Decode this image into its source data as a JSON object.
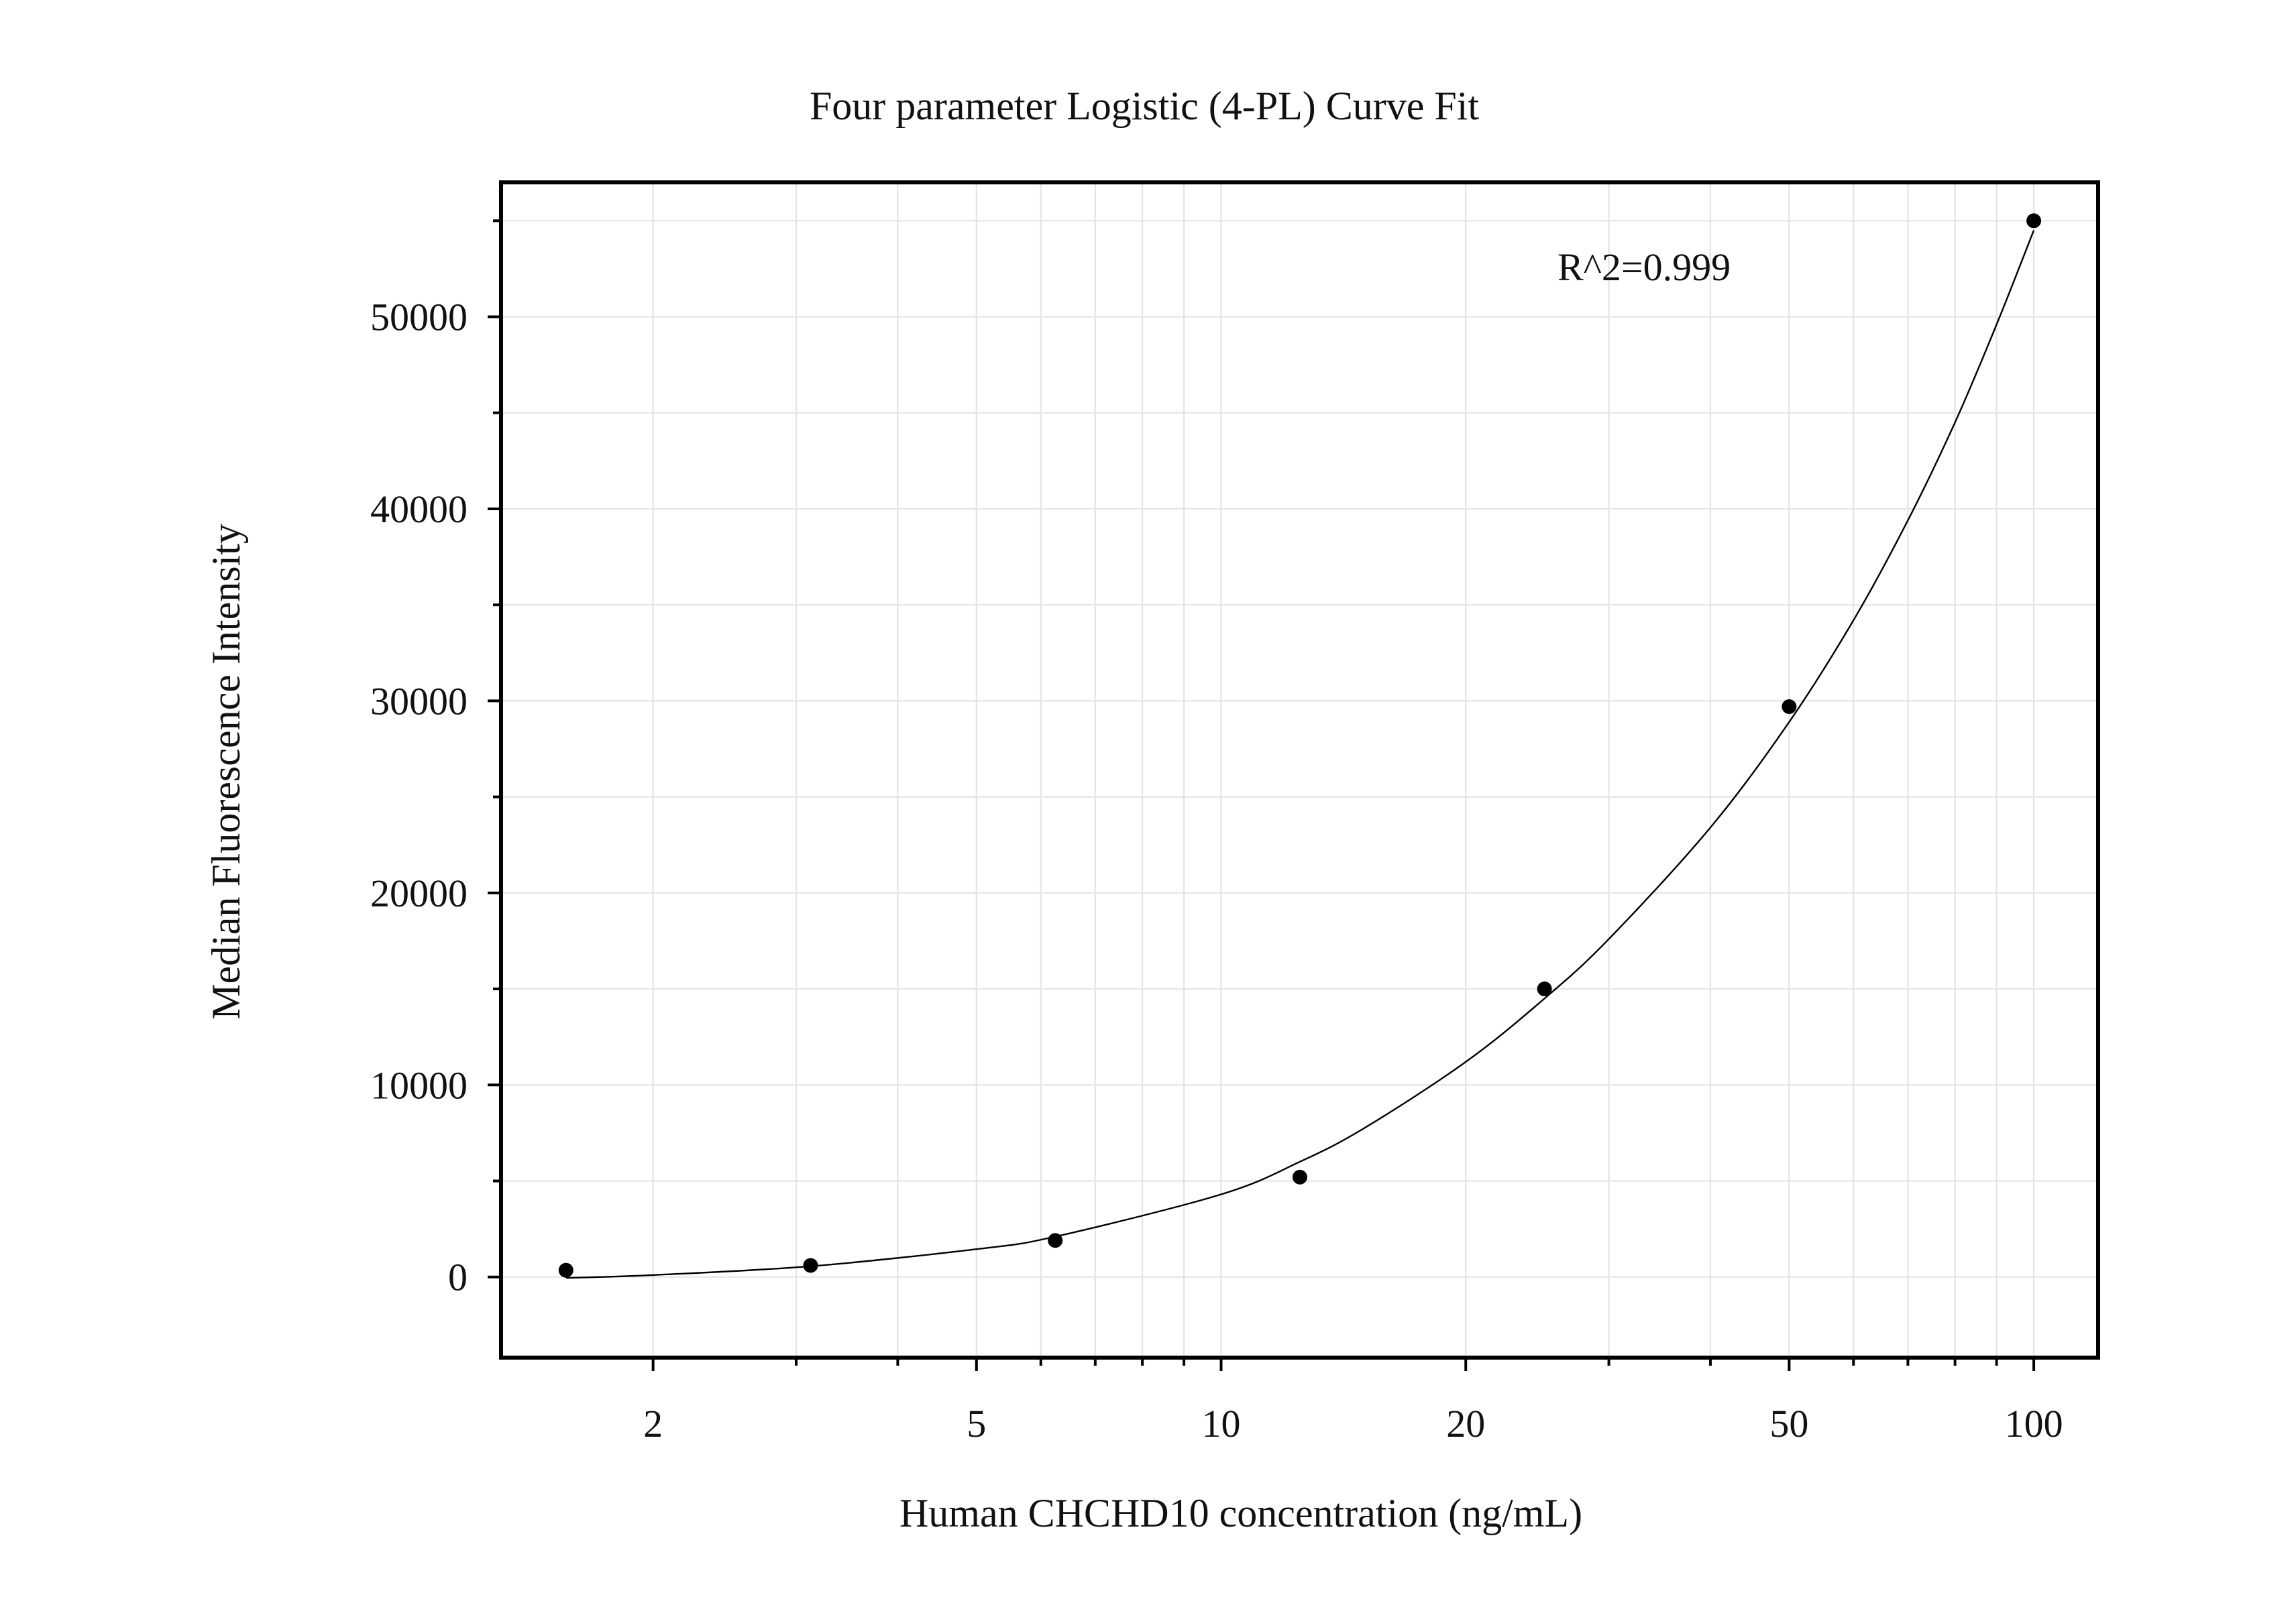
{
  "chart_data": {
    "type": "scatter",
    "title": "Four parameter Logistic (4-PL) Curve Fit",
    "xlabel": "Human CHCHD10 concentration (ng/mL)",
    "ylabel": "Median Fluorescence Intensity",
    "x_scale": "log",
    "xlim": [
      1.3,
      120
    ],
    "ylim": [
      -4200,
      57000
    ],
    "x_ticks": [
      2,
      5,
      10,
      20,
      50,
      100
    ],
    "x_tick_labels": [
      "2",
      "5",
      "10",
      "20",
      "50",
      "100"
    ],
    "y_ticks": [
      0,
      10000,
      20000,
      30000,
      40000,
      50000
    ],
    "y_tick_labels": [
      "0",
      "10000",
      "20000",
      "30000",
      "40000",
      "50000"
    ],
    "grid": true,
    "annotation": "R^2=0.999",
    "series": [
      {
        "points": [
          {
            "x": 1.5625,
            "y": 350
          },
          {
            "x": 3.125,
            "y": 600
          },
          {
            "x": 6.25,
            "y": 1900
          },
          {
            "x": 12.5,
            "y": 5200
          },
          {
            "x": 25,
            "y": 15000
          },
          {
            "x": 50,
            "y": 29700
          },
          {
            "x": 100,
            "y": 55000
          }
        ]
      }
    ],
    "fit_curve": {
      "model": "4PL",
      "points": [
        {
          "x": 1.5625,
          "y": -50
        },
        {
          "x": 2,
          "y": 100
        },
        {
          "x": 3.125,
          "y": 560
        },
        {
          "x": 5,
          "y": 1450
        },
        {
          "x": 6.25,
          "y": 2100
        },
        {
          "x": 10,
          "y": 4300
        },
        {
          "x": 12.5,
          "y": 6000
        },
        {
          "x": 15,
          "y": 7750
        },
        {
          "x": 20,
          "y": 11200
        },
        {
          "x": 25,
          "y": 14500
        },
        {
          "x": 30,
          "y": 17600
        },
        {
          "x": 40,
          "y": 23400
        },
        {
          "x": 50,
          "y": 28900
        },
        {
          "x": 60,
          "y": 34200
        },
        {
          "x": 70,
          "y": 39400
        },
        {
          "x": 80,
          "y": 44500
        },
        {
          "x": 90,
          "y": 49600
        },
        {
          "x": 100,
          "y": 54500
        }
      ]
    }
  }
}
